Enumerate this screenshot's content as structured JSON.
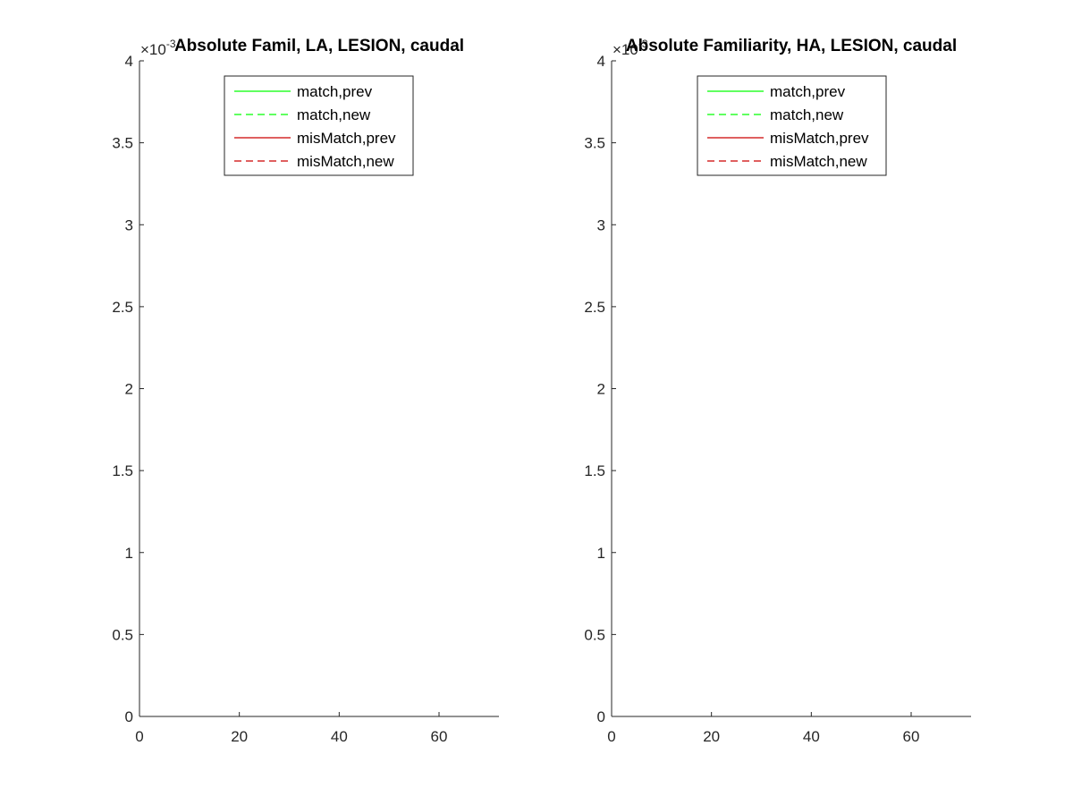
{
  "chart_data": [
    {
      "type": "line",
      "title": "Absolute Famil, LA, LESION, caudal",
      "xlabel": "",
      "ylabel": "",
      "xlim": [
        0,
        72
      ],
      "ylim": [
        0,
        4
      ],
      "x_ticks": [
        0,
        20,
        40,
        60
      ],
      "x_tick_labels": [
        "0",
        "20",
        "40",
        "60"
      ],
      "y_ticks": [
        0,
        0.5,
        1,
        1.5,
        2,
        2.5,
        3,
        3.5,
        4
      ],
      "y_tick_labels": [
        "0",
        "0.5",
        "1",
        "1.5",
        "2",
        "2.5",
        "3",
        "3.5",
        "4"
      ],
      "y_exponent": {
        "base": "×10",
        "power": "-3"
      },
      "grid": false,
      "legend_position": "top",
      "series": [
        {
          "name": "match,prev",
          "color": "#00ff00",
          "dash": "solid",
          "x": [],
          "y": []
        },
        {
          "name": "match,new",
          "color": "#00ff00",
          "dash": "dashed",
          "x": [],
          "y": []
        },
        {
          "name": "misMatch,prev",
          "color": "#cc0000",
          "dash": "solid",
          "x": [],
          "y": []
        },
        {
          "name": "misMatch,new",
          "color": "#cc0000",
          "dash": "dashed",
          "x": [],
          "y": []
        }
      ]
    },
    {
      "type": "line",
      "title": "Absolute Familiarity, HA, LESION, caudal",
      "xlabel": "",
      "ylabel": "",
      "xlim": [
        0,
        72
      ],
      "ylim": [
        0,
        4
      ],
      "x_ticks": [
        0,
        20,
        40,
        60
      ],
      "x_tick_labels": [
        "0",
        "20",
        "40",
        "60"
      ],
      "y_ticks": [
        0,
        0.5,
        1,
        1.5,
        2,
        2.5,
        3,
        3.5,
        4
      ],
      "y_tick_labels": [
        "0",
        "0.5",
        "1",
        "1.5",
        "2",
        "2.5",
        "3",
        "3.5",
        "4"
      ],
      "y_exponent": {
        "base": "×10",
        "power": "-3"
      },
      "grid": false,
      "legend_position": "top",
      "series": [
        {
          "name": "match,prev",
          "color": "#00ff00",
          "dash": "solid",
          "x": [],
          "y": []
        },
        {
          "name": "match,new",
          "color": "#00ff00",
          "dash": "dashed",
          "x": [],
          "y": []
        },
        {
          "name": "misMatch,prev",
          "color": "#cc0000",
          "dash": "solid",
          "x": [],
          "y": []
        },
        {
          "name": "misMatch,new",
          "color": "#cc0000",
          "dash": "dashed",
          "x": [],
          "y": []
        }
      ]
    }
  ]
}
